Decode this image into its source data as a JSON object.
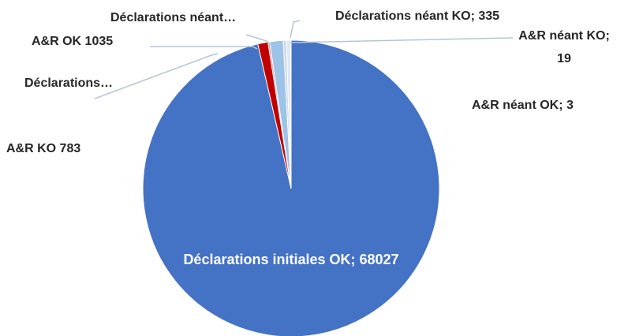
{
  "chart_data": {
    "type": "pie",
    "title": "",
    "start_angle_deg": 0,
    "slices": [
      {
        "name": "Déclarations initiales OK",
        "value": 68027,
        "label": "Déclarations initiales OK; 68027",
        "color": "#4472C4"
      },
      {
        "name": "A&R KO",
        "value": 783,
        "label": "A&R KO  783",
        "color": "#C00000"
      },
      {
        "name": "Déclarations…",
        "value": 130,
        "label": "Déclarations…",
        "color": "#F4878C"
      },
      {
        "name": "A&R OK",
        "value": 1035,
        "label": "A&R OK  1035",
        "color": "#9DC3E6"
      },
      {
        "name": "Déclarations néant…",
        "value": 240,
        "label": "Déclarations néant…",
        "color": "#C9D9EE"
      },
      {
        "name": "Déclarations néant KO",
        "value": 335,
        "label": "Déclarations néant KO; 335",
        "color": "#DDE7F3"
      },
      {
        "name": "A&R néant KO",
        "value": 19,
        "label_line1": "A&R néant KO;",
        "label_line2": "19",
        "color": "#1F3864"
      },
      {
        "name": "A&R néant OK",
        "value": 3,
        "label": "A&R néant OK; 3",
        "color": "#2E75B6"
      }
    ]
  }
}
